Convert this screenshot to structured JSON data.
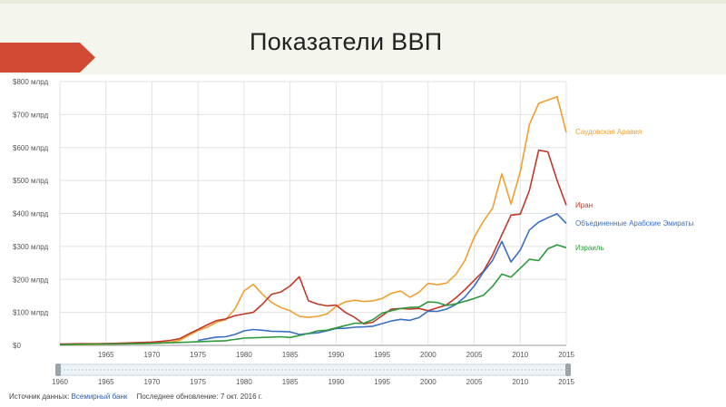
{
  "slide": {
    "title": "Показатели ВВП"
  },
  "footer": {
    "source_label": "Источник данных:",
    "source_link": "Всемирный банк",
    "updated_label": "Последнее обновление: 7 окт. 2016 г."
  },
  "chart_data": {
    "type": "line",
    "title": "",
    "xlabel": "",
    "ylabel": "",
    "xlim": [
      1960,
      2015
    ],
    "ylim": [
      0,
      800
    ],
    "grid": true,
    "legend": "right",
    "y_ticks": [
      {
        "value": 0,
        "label": "$0"
      },
      {
        "value": 100,
        "label": "$100 млрд"
      },
      {
        "value": 200,
        "label": "$200 млрд"
      },
      {
        "value": 300,
        "label": "$300 млрд"
      },
      {
        "value": 400,
        "label": "$400 млрд"
      },
      {
        "value": 500,
        "label": "$500 млрд"
      },
      {
        "value": 600,
        "label": "$600 млрд"
      },
      {
        "value": 700,
        "label": "$700 млрд"
      },
      {
        "value": 800,
        "label": "$800 млрд"
      }
    ],
    "x_ticks": [
      1965,
      1970,
      1975,
      1980,
      1985,
      1990,
      1995,
      2000,
      2005,
      2010,
      2015
    ],
    "slider_ticks": [
      1960,
      1965,
      1970,
      1975,
      1980,
      1985,
      1990,
      1995,
      2000,
      2005,
      2010,
      2015
    ],
    "series": [
      {
        "name": "Саудовская Аравия",
        "color": "#f0a030",
        "points": [
          [
            1960,
            2
          ],
          [
            1962,
            2
          ],
          [
            1964,
            3
          ],
          [
            1966,
            4
          ],
          [
            1968,
            5
          ],
          [
            1970,
            6
          ],
          [
            1971,
            8
          ],
          [
            1972,
            10
          ],
          [
            1973,
            15
          ],
          [
            1974,
            30
          ],
          [
            1975,
            45
          ],
          [
            1976,
            55
          ],
          [
            1977,
            70
          ],
          [
            1978,
            78
          ],
          [
            1979,
            110
          ],
          [
            1980,
            165
          ],
          [
            1981,
            185
          ],
          [
            1982,
            155
          ],
          [
            1983,
            130
          ],
          [
            1984,
            115
          ],
          [
            1985,
            105
          ],
          [
            1986,
            88
          ],
          [
            1987,
            85
          ],
          [
            1988,
            88
          ],
          [
            1989,
            95
          ],
          [
            1990,
            118
          ],
          [
            1991,
            132
          ],
          [
            1992,
            137
          ],
          [
            1993,
            133
          ],
          [
            1994,
            135
          ],
          [
            1995,
            142
          ],
          [
            1996,
            158
          ],
          [
            1997,
            165
          ],
          [
            1998,
            146
          ],
          [
            1999,
            161
          ],
          [
            2000,
            188
          ],
          [
            2001,
            184
          ],
          [
            2002,
            189
          ],
          [
            2003,
            215
          ],
          [
            2004,
            258
          ],
          [
            2005,
            328
          ],
          [
            2006,
            376
          ],
          [
            2007,
            416
          ],
          [
            2008,
            520
          ],
          [
            2009,
            429
          ],
          [
            2010,
            527
          ],
          [
            2011,
            670
          ],
          [
            2012,
            734
          ],
          [
            2013,
            744
          ],
          [
            2014,
            754
          ],
          [
            2015,
            646
          ]
        ]
      },
      {
        "name": "Иран",
        "color": "#c0392b",
        "points": [
          [
            1960,
            4
          ],
          [
            1962,
            5
          ],
          [
            1964,
            5
          ],
          [
            1966,
            6
          ],
          [
            1968,
            8
          ],
          [
            1970,
            10
          ],
          [
            1971,
            12
          ],
          [
            1972,
            15
          ],
          [
            1973,
            20
          ],
          [
            1974,
            35
          ],
          [
            1975,
            48
          ],
          [
            1976,
            62
          ],
          [
            1977,
            75
          ],
          [
            1978,
            80
          ],
          [
            1979,
            90
          ],
          [
            1980,
            95
          ],
          [
            1981,
            100
          ],
          [
            1982,
            125
          ],
          [
            1983,
            155
          ],
          [
            1984,
            162
          ],
          [
            1985,
            180
          ],
          [
            1986,
            208
          ],
          [
            1987,
            135
          ],
          [
            1988,
            125
          ],
          [
            1989,
            120
          ],
          [
            1990,
            122
          ],
          [
            1991,
            100
          ],
          [
            1992,
            85
          ],
          [
            1993,
            65
          ],
          [
            1994,
            70
          ],
          [
            1995,
            90
          ],
          [
            1996,
            110
          ],
          [
            1997,
            112
          ],
          [
            1998,
            110
          ],
          [
            1999,
            112
          ],
          [
            2000,
            105
          ],
          [
            2001,
            114
          ],
          [
            2002,
            123
          ],
          [
            2003,
            144
          ],
          [
            2004,
            169
          ],
          [
            2005,
            197
          ],
          [
            2006,
            225
          ],
          [
            2007,
            274
          ],
          [
            2008,
            335
          ],
          [
            2009,
            395
          ],
          [
            2010,
            398
          ],
          [
            2011,
            470
          ],
          [
            2012,
            592
          ],
          [
            2013,
            587
          ],
          [
            2014,
            500
          ],
          [
            2015,
            425
          ]
        ]
      },
      {
        "name": "Объединенные Арабские Эмираты",
        "color": "#3a6fc4",
        "points": [
          [
            1975,
            15
          ],
          [
            1976,
            20
          ],
          [
            1977,
            25
          ],
          [
            1978,
            26
          ],
          [
            1979,
            33
          ],
          [
            1980,
            44
          ],
          [
            1981,
            48
          ],
          [
            1982,
            46
          ],
          [
            1983,
            43
          ],
          [
            1984,
            42
          ],
          [
            1985,
            41
          ],
          [
            1986,
            33
          ],
          [
            1987,
            36
          ],
          [
            1988,
            38
          ],
          [
            1989,
            44
          ],
          [
            1990,
            51
          ],
          [
            1991,
            52
          ],
          [
            1992,
            55
          ],
          [
            1993,
            56
          ],
          [
            1994,
            58
          ],
          [
            1995,
            66
          ],
          [
            1996,
            74
          ],
          [
            1997,
            79
          ],
          [
            1998,
            76
          ],
          [
            1999,
            84
          ],
          [
            2000,
            104
          ],
          [
            2001,
            103
          ],
          [
            2002,
            110
          ],
          [
            2003,
            124
          ],
          [
            2004,
            147
          ],
          [
            2005,
            180
          ],
          [
            2006,
            222
          ],
          [
            2007,
            258
          ],
          [
            2008,
            315
          ],
          [
            2009,
            253
          ],
          [
            2010,
            289
          ],
          [
            2011,
            350
          ],
          [
            2012,
            374
          ],
          [
            2013,
            387
          ],
          [
            2014,
            399
          ],
          [
            2015,
            370
          ]
        ]
      },
      {
        "name": "Израиль",
        "color": "#2e9a3c",
        "points": [
          [
            1960,
            2
          ],
          [
            1962,
            3
          ],
          [
            1964,
            4
          ],
          [
            1966,
            4
          ],
          [
            1968,
            5
          ],
          [
            1970,
            6
          ],
          [
            1972,
            8
          ],
          [
            1974,
            10
          ],
          [
            1976,
            12
          ],
          [
            1978,
            14
          ],
          [
            1980,
            22
          ],
          [
            1982,
            24
          ],
          [
            1984,
            26
          ],
          [
            1985,
            24
          ],
          [
            1986,
            30
          ],
          [
            1987,
            36
          ],
          [
            1988,
            44
          ],
          [
            1989,
            46
          ],
          [
            1990,
            53
          ],
          [
            1991,
            60
          ],
          [
            1992,
            67
          ],
          [
            1993,
            67
          ],
          [
            1994,
            78
          ],
          [
            1995,
            98
          ],
          [
            1996,
            105
          ],
          [
            1997,
            112
          ],
          [
            1998,
            115
          ],
          [
            1999,
            116
          ],
          [
            2000,
            132
          ],
          [
            2001,
            130
          ],
          [
            2002,
            121
          ],
          [
            2003,
            126
          ],
          [
            2004,
            134
          ],
          [
            2005,
            142
          ],
          [
            2006,
            152
          ],
          [
            2007,
            179
          ],
          [
            2008,
            216
          ],
          [
            2009,
            207
          ],
          [
            2010,
            234
          ],
          [
            2011,
            261
          ],
          [
            2012,
            257
          ],
          [
            2013,
            293
          ],
          [
            2014,
            305
          ],
          [
            2015,
            296
          ]
        ]
      }
    ]
  }
}
